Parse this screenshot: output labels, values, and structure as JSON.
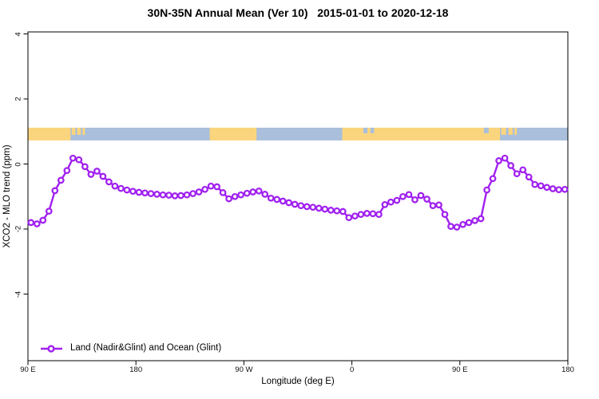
{
  "figure": {
    "title": "30N-35N Annual Mean (Ver 10)   2015-01-01 to 2020-12-18",
    "xlabel": "Longitude (deg E)",
    "ylabel": "XCO2 - MLO trend (ppm)",
    "legend": {
      "label": "Land (Nadir&Glint) and Ocean (Glint)"
    }
  },
  "chart_data": {
    "type": "line",
    "title": "30N-35N Annual Mean (Ver 10)   2015-01-01 to 2020-12-18",
    "xlabel": "Longitude (deg E)",
    "ylabel": "XCO2 - MLO trend (ppm)",
    "xlim": [
      90,
      540
    ],
    "ylim": [
      -6.05,
      4.06
    ],
    "grid": false,
    "legend_position": "bottom-left",
    "x_ticks": [
      {
        "value": 90,
        "label": "90 E"
      },
      {
        "value": 180,
        "label": "180"
      },
      {
        "value": 270,
        "label": "90 W"
      },
      {
        "value": 360,
        "label": "0"
      },
      {
        "value": 450,
        "label": "90 E"
      },
      {
        "value": 540,
        "label": "180"
      }
    ],
    "y_ticks": [
      {
        "value": 4,
        "label": "4"
      },
      {
        "value": 2,
        "label": "2"
      },
      {
        "value": 0,
        "label": "0"
      },
      {
        "value": -2,
        "label": "-2"
      },
      {
        "value": -4,
        "label": "-4"
      }
    ],
    "series": [
      {
        "name": "Land (Nadir&Glint) and Ocean (Glint)",
        "color": "#A020F0",
        "marker": "open-circle",
        "x": [
          92.5,
          97.5,
          102.5,
          107.5,
          112.5,
          117.5,
          122.5,
          127.5,
          132.5,
          137.5,
          142.5,
          147.5,
          152.5,
          157.5,
          162.5,
          167.5,
          172.5,
          177.5,
          182.5,
          187.5,
          192.5,
          197.5,
          202.5,
          207.5,
          212.5,
          217.5,
          222.5,
          227.5,
          232.5,
          237.5,
          242.5,
          247.5,
          252.5,
          257.5,
          262.5,
          267.5,
          272.5,
          277.5,
          282.5,
          287.5,
          292.5,
          297.5,
          302.5,
          307.5,
          312.5,
          317.5,
          322.5,
          327.5,
          332.5,
          337.5,
          342.5,
          347.5,
          352.5,
          357.5,
          362.5,
          367.5,
          372.5,
          377.5,
          382.5,
          387.5,
          392.5,
          397.5,
          402.5,
          407.5,
          412.5,
          417.5,
          422.5,
          427.5,
          432.5,
          437.5,
          442.5,
          447.5,
          452.5,
          457.5,
          462.5,
          467.5,
          472.5,
          477.5,
          482.5,
          487.5,
          492.5,
          497.5,
          502.5,
          507.5,
          512.5,
          517.5,
          522.5,
          527.5,
          532.5,
          537.5
        ],
        "y": [
          -1.8,
          -1.84,
          -1.73,
          -1.45,
          -0.82,
          -0.5,
          -0.2,
          0.18,
          0.13,
          -0.08,
          -0.32,
          -0.22,
          -0.38,
          -0.55,
          -0.68,
          -0.75,
          -0.8,
          -0.84,
          -0.87,
          -0.89,
          -0.91,
          -0.93,
          -0.95,
          -0.96,
          -0.98,
          -0.97,
          -0.95,
          -0.91,
          -0.86,
          -0.78,
          -0.68,
          -0.7,
          -0.88,
          -1.07,
          -1.0,
          -0.95,
          -0.9,
          -0.86,
          -0.83,
          -0.93,
          -1.05,
          -1.09,
          -1.14,
          -1.19,
          -1.24,
          -1.28,
          -1.31,
          -1.33,
          -1.36,
          -1.39,
          -1.42,
          -1.44,
          -1.46,
          -1.65,
          -1.6,
          -1.55,
          -1.52,
          -1.53,
          -1.55,
          -1.25,
          -1.17,
          -1.12,
          -1.0,
          -0.94,
          -1.1,
          -0.97,
          -1.08,
          -1.28,
          -1.26,
          -1.55,
          -1.92,
          -1.94,
          -1.86,
          -1.8,
          -1.74,
          -1.68,
          -0.8,
          -0.45,
          0.1,
          0.18,
          -0.05,
          -0.3,
          -0.18,
          -0.4,
          -0.63,
          -0.67,
          -0.72,
          -0.76,
          -0.79,
          -0.78
        ]
      }
    ],
    "map_strip": {
      "description": "land/ocean band at latitude 30N-35N drawn near y=1",
      "ocean_color": "#A9BFDB",
      "land_color": "#FBD57E",
      "land_segments": [
        [
          90,
          125.5
        ],
        [
          241.5,
          280.5
        ],
        [
          352,
          483.5
        ]
      ],
      "islands": [
        [
          126.5,
          129.5
        ],
        [
          131,
          134
        ],
        [
          135.5,
          137.5
        ],
        [
          484.5,
          488.5
        ],
        [
          490.5,
          494
        ],
        [
          495.5,
          497.5
        ]
      ],
      "sea_notches": [
        [
          369.5,
          373
        ],
        [
          375.5,
          378.5
        ],
        [
          470,
          474
        ]
      ]
    }
  }
}
